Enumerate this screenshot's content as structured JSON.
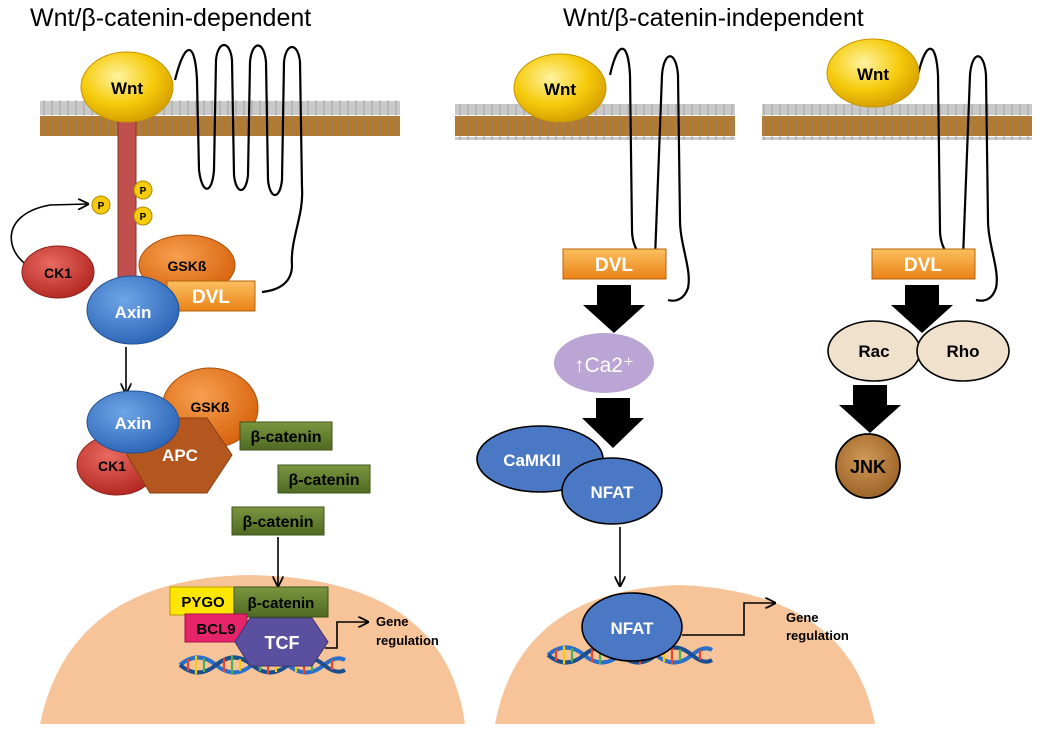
{
  "titles": {
    "dependent": "Wnt/β-catenin-dependent",
    "independent": "Wnt/β-catenin-independent"
  },
  "panel_left": {
    "wnt": "Wnt",
    "phospho": [
      "P",
      "P",
      "P"
    ],
    "ck1_top": "CK1",
    "gsk_top": "GSKß",
    "axin_top": "Axin",
    "dvl": "DVL",
    "axin_complex": "Axin",
    "gsk_complex": "GSKß",
    "ck1_complex": "CK1",
    "apc": "APC",
    "bcatenin_free": [
      "β-catenin",
      "β-catenin",
      "β-catenin"
    ],
    "pygo": "PYGO",
    "bcatenin_nuclear": "β-catenin",
    "bcl9": "BCL9",
    "tcf": "TCF",
    "gene_regulation": [
      "Gene",
      "regulation"
    ]
  },
  "panel_middle": {
    "wnt": "Wnt",
    "dvl": "DVL",
    "calcium": "↑Ca2⁺",
    "camkii": "CaMKII",
    "nfat": "NFAT",
    "nfat_nuclear": "NFAT",
    "gene_regulation": [
      "Gene",
      "regulation"
    ]
  },
  "panel_right": {
    "wnt": "Wnt",
    "dvl": "DVL",
    "rac": "Rac",
    "rho": "Rho",
    "jnk": "JNK"
  },
  "colors": {
    "wnt": "#f5c400",
    "receptor_red": "#c0504d",
    "ck1": "#c8312a",
    "gsk": "#e8731a",
    "axin": "#3b78c8",
    "dvl": "#f29a2e",
    "apc": "#b4571e",
    "bcatenin": "#5f7a2e",
    "pygo": "#ffe600",
    "bcl9": "#e6246a",
    "tcf": "#5b4fa0",
    "nucleus": "#f7c49a",
    "calcium": "#bba5d4",
    "nfat": "#4a78c4",
    "rac_rho": "#efe1cc",
    "jnk": "#b07838",
    "membrane": "#b07a2e"
  }
}
